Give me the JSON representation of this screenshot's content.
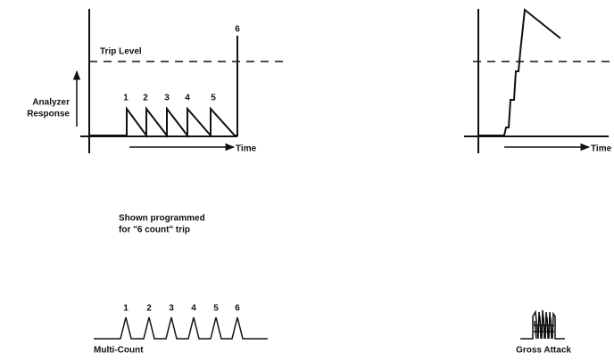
{
  "left_panel": {
    "trip_label": "Trip Level",
    "y_label": [
      "Analyzer",
      "Response"
    ],
    "peak_labels": [
      "1",
      "2",
      "3",
      "4",
      "5",
      "6"
    ],
    "x_label": "Time"
  },
  "note": [
    "Shown programmed",
    "for \"6 count\" trip"
  ],
  "multi_count": {
    "pulse_labels": [
      "1",
      "2",
      "3",
      "4",
      "5",
      "6"
    ],
    "caption": "Multi-Count"
  },
  "right_panel": {
    "x_label": "Time"
  },
  "gross_attack": {
    "caption": "Gross Attack"
  }
}
